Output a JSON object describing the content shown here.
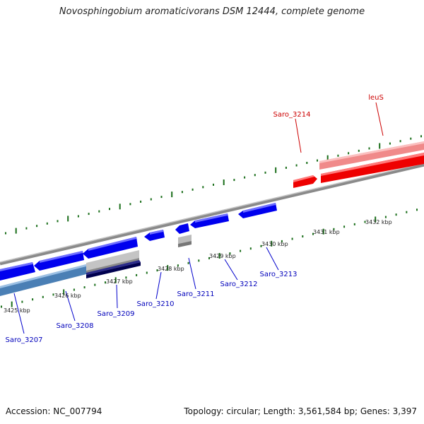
{
  "title": "Novosphingobium aromaticivorans DSM 12444, complete genome",
  "accession": "Accession: NC_007794",
  "topology": "Topology: circular; Length: 3,561,584 bp; Genes: 3,397",
  "colors": {
    "forward_gene": "#ff0000",
    "forward_gene_light": "#f08a8a",
    "reverse_gene": "#0000ee",
    "reverse_gene_dark": "#00004f",
    "reverse_gene_steel": "#4a7fb5",
    "unknown_gene": "#bbbbbb",
    "backbone": "#888888",
    "tick": "#1a6e1a",
    "forward_label": "#cc0000",
    "reverse_label": "#0000bb"
  },
  "scale_labels": [
    "3425 kbp",
    "3426 kbp",
    "3427 kbp",
    "3428 kbp",
    "3429 kbp",
    "3430 kbp",
    "3431 kbp",
    "3432 kbp"
  ],
  "gene_labels": {
    "forward": [
      "Saro_3214",
      "leuS"
    ],
    "reverse": [
      "Saro_3207",
      "Saro_3208",
      "Saro_3209",
      "Saro_3210",
      "Saro_3211",
      "Saro_3212",
      "Saro_3213"
    ]
  }
}
